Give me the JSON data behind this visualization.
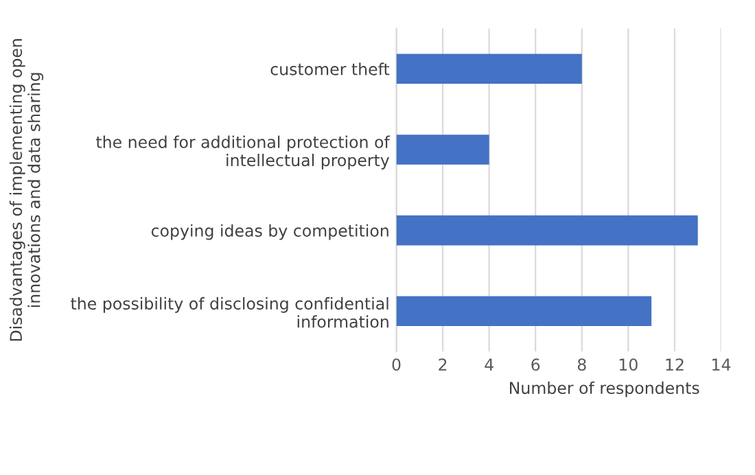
{
  "chart_data": {
    "type": "bar",
    "orientation": "horizontal",
    "categories": [
      "customer theft",
      "the need for additional protection of\nintellectual property",
      "copying ideas by competition",
      "the possibility of disclosing confidential\ninformation"
    ],
    "values": [
      8,
      4,
      13,
      11
    ],
    "color": "#4472c4",
    "xlim": [
      0,
      14
    ],
    "xticks": [
      0,
      2,
      4,
      6,
      8,
      10,
      12,
      14
    ],
    "xlabel": "Number of respondents",
    "ylabel": "Disadvantages of implementing open\ninnovations and data sharing",
    "grid": "x"
  }
}
